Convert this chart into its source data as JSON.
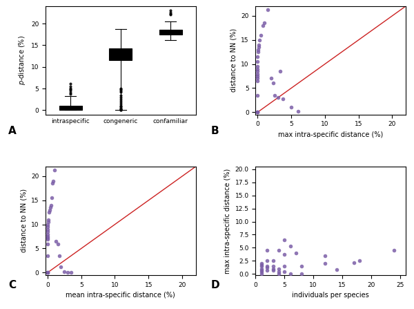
{
  "scatter_B_x": [
    0.0,
    0.0,
    0.0,
    0.0,
    0.0,
    0.0,
    0.0,
    0.0,
    0.0,
    0.0,
    0.0,
    0.0,
    0.0,
    0.05,
    0.1,
    0.15,
    0.2,
    0.3,
    0.5,
    0.8,
    1.0,
    1.5,
    2.0,
    2.3,
    2.5,
    3.0,
    3.3,
    3.8,
    5.0,
    6.0
  ],
  "scatter_B_y": [
    0.0,
    0.0,
    0.0,
    3.5,
    6.5,
    7.0,
    7.5,
    8.0,
    8.5,
    9.0,
    9.5,
    10.5,
    11.5,
    12.5,
    13.0,
    13.5,
    14.0,
    15.0,
    16.0,
    18.0,
    18.5,
    21.3,
    7.0,
    6.0,
    3.5,
    3.0,
    8.5,
    2.8,
    1.0,
    0.2
  ],
  "scatter_C_x": [
    0.0,
    0.0,
    0.0,
    0.0,
    0.0,
    0.0,
    0.0,
    0.0,
    0.0,
    0.0,
    0.0,
    0.0,
    0.05,
    0.1,
    0.15,
    0.2,
    0.3,
    0.4,
    0.5,
    0.6,
    0.7,
    0.8,
    1.0,
    1.2,
    1.5,
    1.8,
    2.0,
    2.5,
    3.0,
    3.5
  ],
  "scatter_C_y": [
    0.0,
    0.0,
    0.0,
    3.5,
    6.0,
    7.0,
    7.2,
    7.5,
    8.0,
    8.5,
    9.0,
    9.5,
    10.0,
    10.5,
    11.0,
    12.5,
    13.0,
    13.5,
    14.0,
    15.5,
    18.5,
    19.0,
    21.3,
    6.5,
    6.0,
    3.5,
    1.2,
    0.2,
    0.0,
    0.0
  ],
  "scatter_D_x": [
    1,
    1,
    1,
    1,
    1,
    1,
    1,
    2,
    2,
    2,
    2,
    2,
    3,
    3,
    3,
    3,
    4,
    4,
    4,
    4,
    5,
    5,
    5,
    5,
    6,
    6,
    7,
    8,
    8,
    12,
    12,
    14,
    17,
    18,
    24
  ],
  "scatter_D_y": [
    0.5,
    0.7,
    1.0,
    1.5,
    1.8,
    2.0,
    0.1,
    0.7,
    1.2,
    1.5,
    2.5,
    4.5,
    0.7,
    1.0,
    1.5,
    2.5,
    0.1,
    0.5,
    1.0,
    4.5,
    0.5,
    1.5,
    3.8,
    6.5,
    0.1,
    5.3,
    4.0,
    1.5,
    0.1,
    2.0,
    3.5,
    0.8,
    2.2,
    2.5,
    4.5
  ],
  "dot_color": "#7B5EA7",
  "line_color": "#CC2222",
  "ylabel_A": "p-distance (%)",
  "xlabel_B": "max intra-specific distance (%)",
  "ylabel_B": "distance to NN (%)",
  "xlabel_C": "mean intra-specific distance (%)",
  "ylabel_C": "distance to NN (%)",
  "xlabel_D": "individuals per species",
  "ylabel_D": "max intra-specific distance (%)",
  "categories": [
    "intraspecific",
    "congeneric",
    "confamiliar"
  ],
  "bg_color": "#ffffff",
  "lim_BC": 22,
  "intra_whislo": 0.0,
  "intra_q1": 0.0,
  "intra_med": 0.7,
  "intra_q3": 1.1,
  "intra_whishi": 3.3,
  "intra_fliers": [
    3.8,
    4.0,
    4.5,
    4.8,
    5.0,
    5.5,
    6.2
  ],
  "congener_whislo": 0.0,
  "congener_q1": 11.5,
  "congener_med": 13.0,
  "congener_q3": 14.3,
  "congener_whishi": 18.8,
  "congener_fliers_lo": [
    0.05,
    0.1,
    0.2,
    0.3,
    0.5,
    0.8,
    1.0,
    1.5,
    2.0,
    2.5,
    3.0,
    3.5,
    4.2,
    4.5,
    4.8,
    5.0
  ],
  "confam_whislo": 16.2,
  "confam_q1": 17.5,
  "confam_med": 18.0,
  "confam_q3": 18.5,
  "confam_whishi": 20.5,
  "confam_fliers": [
    22.0,
    22.2,
    22.5,
    23.0
  ]
}
